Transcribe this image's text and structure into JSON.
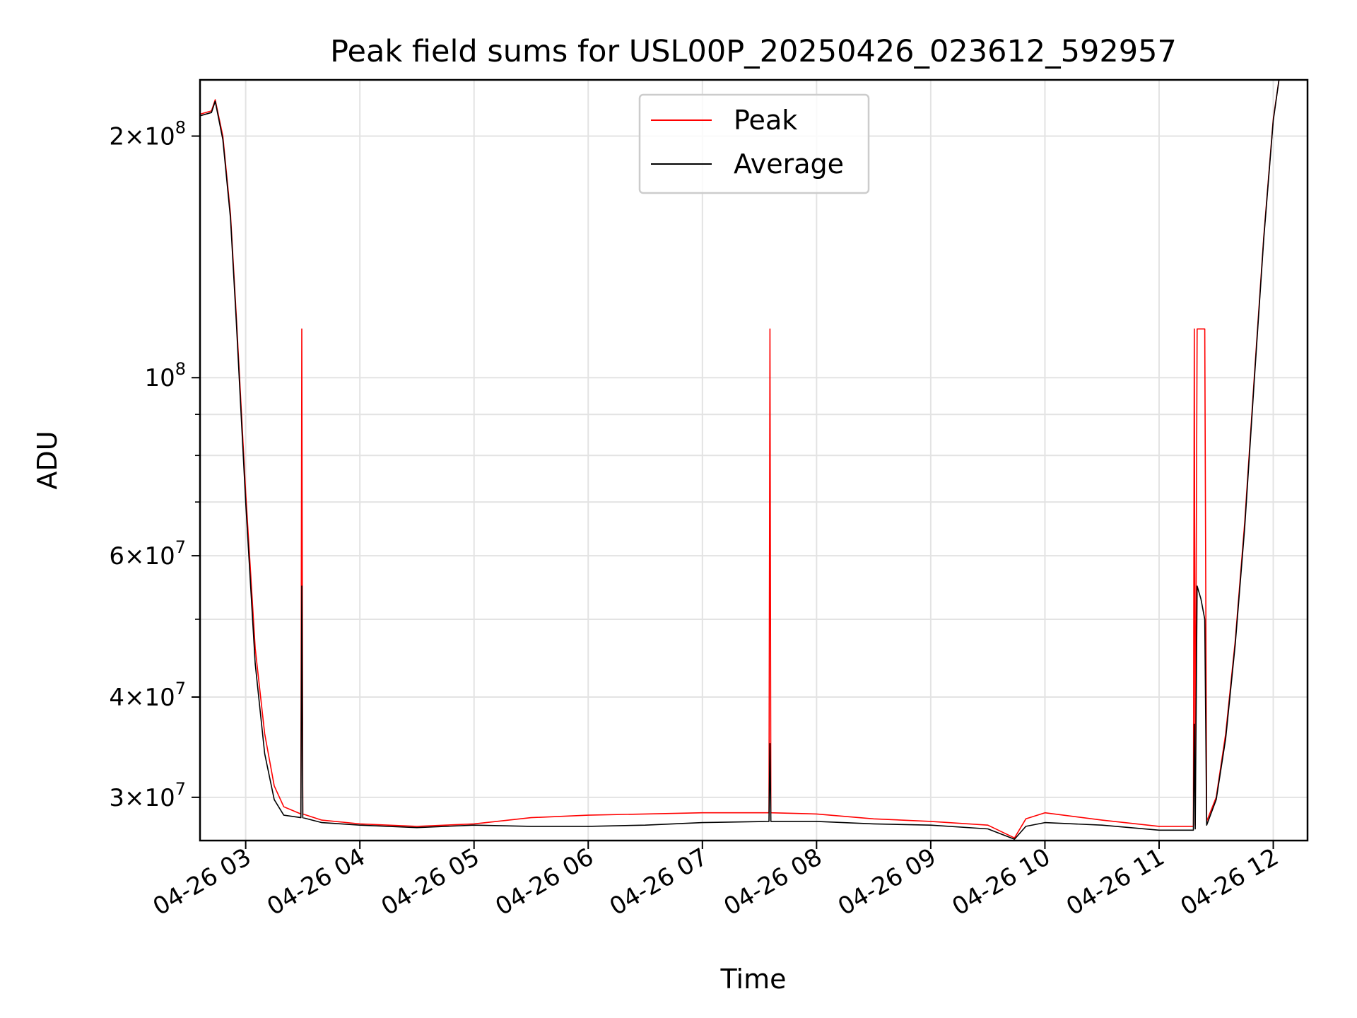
{
  "chart_data": {
    "type": "line",
    "title": "Peak field sums for USL00P_20250426_023612_592957",
    "xlabel": "Time",
    "ylabel": "ADU",
    "yscale": "log",
    "ylim": [
      26500000,
      235000000
    ],
    "xlim": [
      "2025-04-26T02:36:00",
      "2025-04-26T12:18:00"
    ],
    "x_ticks": [
      {
        "t": "2025-04-26T03:00",
        "label": "04-26 03"
      },
      {
        "t": "2025-04-26T04:00",
        "label": "04-26 04"
      },
      {
        "t": "2025-04-26T05:00",
        "label": "04-26 05"
      },
      {
        "t": "2025-04-26T06:00",
        "label": "04-26 06"
      },
      {
        "t": "2025-04-26T07:00",
        "label": "04-26 07"
      },
      {
        "t": "2025-04-26T08:00",
        "label": "04-26 08"
      },
      {
        "t": "2025-04-26T09:00",
        "label": "04-26 09"
      },
      {
        "t": "2025-04-26T10:00",
        "label": "04-26 10"
      },
      {
        "t": "2025-04-26T11:00",
        "label": "04-26 11"
      },
      {
        "t": "2025-04-26T12:00",
        "label": "04-26 12"
      }
    ],
    "y_ticks_major": [
      {
        "value": 30000000,
        "base": "3",
        "exp": "7"
      },
      {
        "value": 40000000,
        "base": "4",
        "exp": "7"
      },
      {
        "value": 60000000,
        "base": "6",
        "exp": "7"
      },
      {
        "value": 100000000,
        "base": "",
        "exp": "8"
      },
      {
        "value": 200000000,
        "base": "2",
        "exp": "8"
      }
    ],
    "y_ticks_minor": [
      50000000,
      70000000,
      80000000,
      90000000
    ],
    "grid": true,
    "legend_position": "upper-center",
    "series": [
      {
        "name": "Peak",
        "color": "#ff0000",
        "points": [
          [
            "2025-04-26T02:36",
            213000000
          ],
          [
            "2025-04-26T02:42",
            215000000
          ],
          [
            "2025-04-26T02:44",
            222000000
          ],
          [
            "2025-04-26T02:48",
            200000000
          ],
          [
            "2025-04-26T02:52",
            160000000
          ],
          [
            "2025-04-26T02:55",
            120000000
          ],
          [
            "2025-04-26T03:00",
            72000000
          ],
          [
            "2025-04-26T03:05",
            46000000
          ],
          [
            "2025-04-26T03:10",
            36000000
          ],
          [
            "2025-04-26T03:15",
            31000000
          ],
          [
            "2025-04-26T03:20",
            29200000
          ],
          [
            "2025-04-26T03:29",
            28600000
          ],
          [
            "2025-04-26T03:29:30",
            115000000
          ],
          [
            "2025-04-26T03:30",
            28600000
          ],
          [
            "2025-04-26T03:40",
            28100000
          ],
          [
            "2025-04-26T04:00",
            27800000
          ],
          [
            "2025-04-26T04:30",
            27600000
          ],
          [
            "2025-04-26T05:00",
            27800000
          ],
          [
            "2025-04-26T05:30",
            28300000
          ],
          [
            "2025-04-26T06:00",
            28500000
          ],
          [
            "2025-04-26T06:30",
            28600000
          ],
          [
            "2025-04-26T07:00",
            28700000
          ],
          [
            "2025-04-26T07:35",
            28700000
          ],
          [
            "2025-04-26T07:35:30",
            115000000
          ],
          [
            "2025-04-26T07:36",
            28700000
          ],
          [
            "2025-04-26T08:00",
            28600000
          ],
          [
            "2025-04-26T08:30",
            28200000
          ],
          [
            "2025-04-26T09:00",
            28000000
          ],
          [
            "2025-04-26T09:30",
            27700000
          ],
          [
            "2025-04-26T09:44",
            26700000
          ],
          [
            "2025-04-26T09:50",
            28200000
          ],
          [
            "2025-04-26T10:00",
            28700000
          ],
          [
            "2025-04-26T10:30",
            28100000
          ],
          [
            "2025-04-26T11:00",
            27600000
          ],
          [
            "2025-04-26T11:18",
            27600000
          ],
          [
            "2025-04-26T11:18:30",
            115000000
          ],
          [
            "2025-04-26T11:19",
            27700000
          ],
          [
            "2025-04-26T11:20",
            115000000
          ],
          [
            "2025-04-26T11:22",
            115000000
          ],
          [
            "2025-04-26T11:24",
            115000000
          ],
          [
            "2025-04-26T11:25",
            28000000
          ],
          [
            "2025-04-26T11:30",
            30000000
          ],
          [
            "2025-04-26T11:35",
            36000000
          ],
          [
            "2025-04-26T11:40",
            47000000
          ],
          [
            "2025-04-26T11:45",
            66000000
          ],
          [
            "2025-04-26T11:50",
            100000000
          ],
          [
            "2025-04-26T11:55",
            150000000
          ],
          [
            "2025-04-26T12:00",
            210000000
          ],
          [
            "2025-04-26T12:03",
            235000000
          ]
        ]
      },
      {
        "name": "Average",
        "color": "#000000",
        "points": [
          [
            "2025-04-26T02:36",
            212000000
          ],
          [
            "2025-04-26T02:42",
            214000000
          ],
          [
            "2025-04-26T02:44",
            221000000
          ],
          [
            "2025-04-26T02:48",
            198000000
          ],
          [
            "2025-04-26T02:52",
            158000000
          ],
          [
            "2025-04-26T02:55",
            118000000
          ],
          [
            "2025-04-26T03:00",
            70000000
          ],
          [
            "2025-04-26T03:05",
            44000000
          ],
          [
            "2025-04-26T03:10",
            34000000
          ],
          [
            "2025-04-26T03:15",
            29800000
          ],
          [
            "2025-04-26T03:20",
            28500000
          ],
          [
            "2025-04-26T03:29",
            28300000
          ],
          [
            "2025-04-26T03:29:30",
            55000000
          ],
          [
            "2025-04-26T03:30",
            28300000
          ],
          [
            "2025-04-26T03:40",
            27900000
          ],
          [
            "2025-04-26T04:00",
            27700000
          ],
          [
            "2025-04-26T04:30",
            27500000
          ],
          [
            "2025-04-26T05:00",
            27700000
          ],
          [
            "2025-04-26T05:30",
            27600000
          ],
          [
            "2025-04-26T06:00",
            27600000
          ],
          [
            "2025-04-26T06:30",
            27700000
          ],
          [
            "2025-04-26T07:00",
            27900000
          ],
          [
            "2025-04-26T07:35",
            28000000
          ],
          [
            "2025-04-26T07:35:30",
            35000000
          ],
          [
            "2025-04-26T07:36",
            28000000
          ],
          [
            "2025-04-26T08:00",
            28000000
          ],
          [
            "2025-04-26T08:30",
            27800000
          ],
          [
            "2025-04-26T09:00",
            27700000
          ],
          [
            "2025-04-26T09:30",
            27400000
          ],
          [
            "2025-04-26T09:44",
            26600000
          ],
          [
            "2025-04-26T09:50",
            27600000
          ],
          [
            "2025-04-26T10:00",
            27900000
          ],
          [
            "2025-04-26T10:30",
            27700000
          ],
          [
            "2025-04-26T11:00",
            27300000
          ],
          [
            "2025-04-26T11:18",
            27300000
          ],
          [
            "2025-04-26T11:18:30",
            37000000
          ],
          [
            "2025-04-26T11:19",
            27400000
          ],
          [
            "2025-04-26T11:20",
            55000000
          ],
          [
            "2025-04-26T11:22",
            53000000
          ],
          [
            "2025-04-26T11:24",
            50000000
          ],
          [
            "2025-04-26T11:25",
            27700000
          ],
          [
            "2025-04-26T11:30",
            29800000
          ],
          [
            "2025-04-26T11:35",
            35500000
          ],
          [
            "2025-04-26T11:40",
            46500000
          ],
          [
            "2025-04-26T11:45",
            65000000
          ],
          [
            "2025-04-26T11:50",
            99000000
          ],
          [
            "2025-04-26T11:55",
            149000000
          ],
          [
            "2025-04-26T12:00",
            209000000
          ],
          [
            "2025-04-26T12:03",
            235000000
          ]
        ]
      }
    ]
  }
}
